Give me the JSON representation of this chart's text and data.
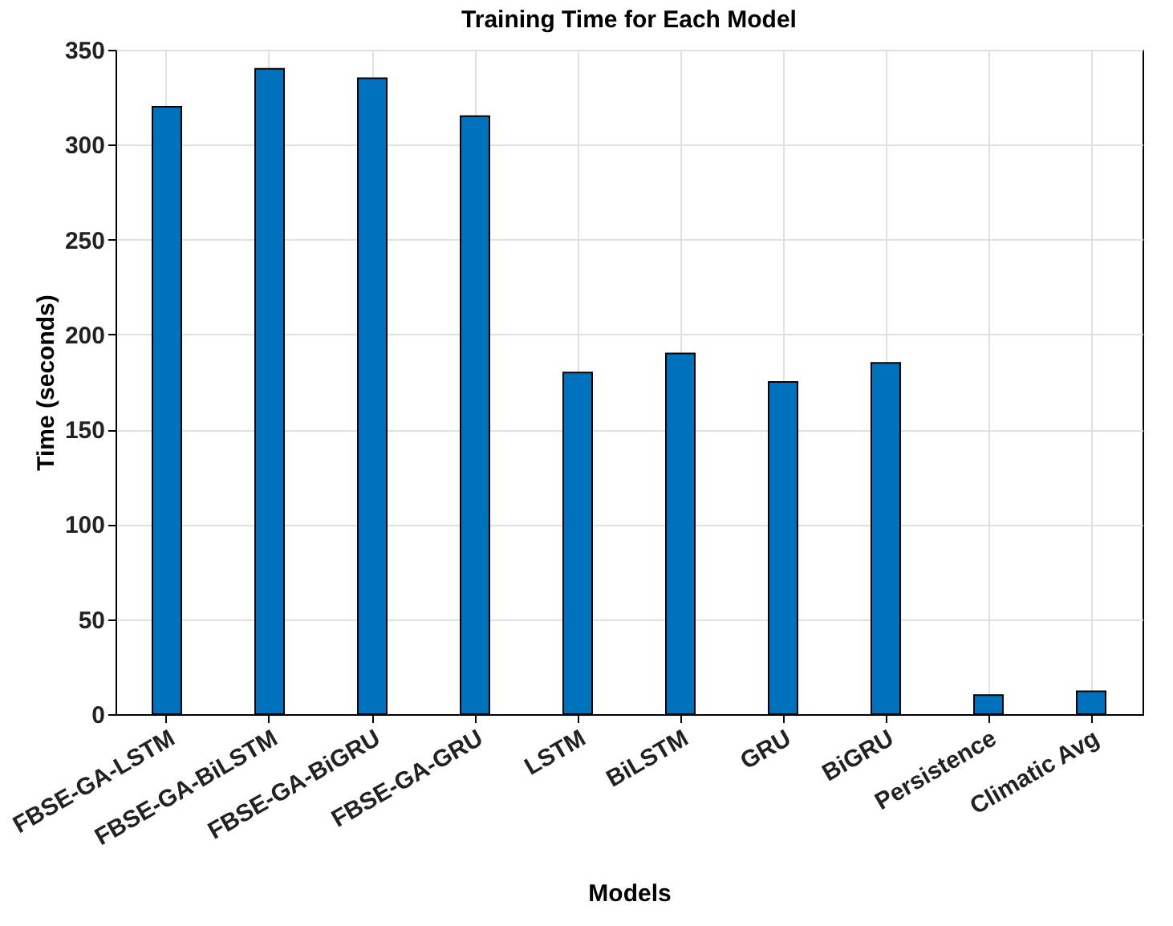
{
  "chart_data": {
    "type": "bar",
    "title": "Training  Time for Each Model",
    "xlabel": "Models",
    "ylabel": "Time (seconds)",
    "categories": [
      "FBSE-GA-LSTM",
      "FBSE-GA-BiLSTM",
      "FBSE-GA-BiGRU",
      "FBSE-GA-GRU",
      "LSTM",
      "BiLSTM",
      "GRU",
      "BiGRU",
      "Persistence",
      "Climatic Avg"
    ],
    "values": [
      320,
      340,
      335,
      315,
      180,
      190,
      175,
      185,
      10,
      12
    ],
    "color": "#0072bd",
    "ylim": [
      0,
      350
    ],
    "yticks": [
      0,
      50,
      100,
      150,
      200,
      250,
      300,
      350
    ],
    "grid": true
  }
}
